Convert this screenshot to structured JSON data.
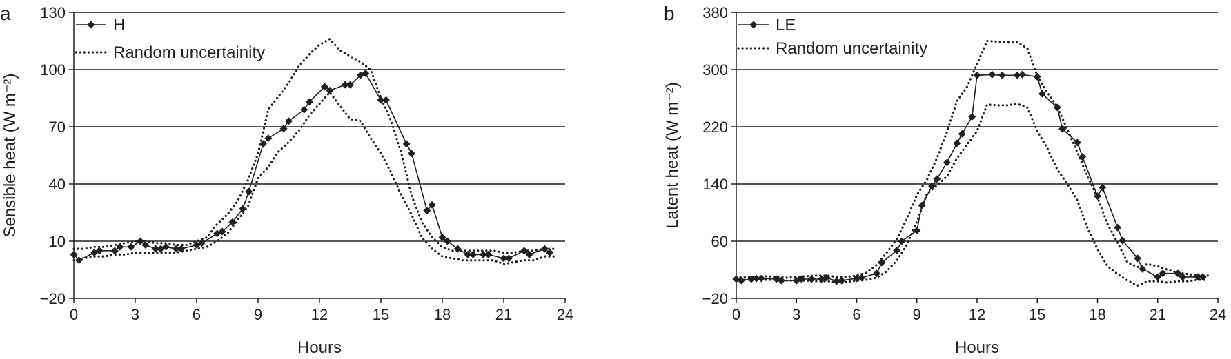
{
  "chart_data": [
    {
      "panel_label": "a",
      "type": "line",
      "xlabel": "Hours",
      "ylabel": "Sensible heat (W m⁻²)",
      "xlim": [
        0,
        24
      ],
      "ylim": [
        -20,
        130
      ],
      "xticks": [
        0,
        3,
        6,
        9,
        12,
        15,
        18,
        21,
        24
      ],
      "yticks": [
        -20,
        10,
        40,
        70,
        100,
        130
      ],
      "ytick_labels": [
        "−20",
        "10",
        "40",
        "70",
        "100",
        "130"
      ],
      "grid": "horizontal",
      "legend_position": "top-left",
      "series": [
        {
          "name": "H",
          "style": "solid-diamond",
          "x": [
            0.0,
            0.25,
            1.0,
            1.25,
            2.0,
            2.25,
            2.8,
            3.25,
            3.5,
            4.0,
            4.25,
            4.5,
            5.0,
            5.25,
            6.0,
            6.25,
            7.0,
            7.25,
            7.75,
            8.25,
            8.55,
            9.25,
            9.5,
            10.25,
            10.5,
            11.25,
            11.5,
            12.25,
            12.5,
            13.25,
            13.5,
            14.0,
            14.25,
            15.0,
            15.25,
            16.25,
            16.5,
            17.25,
            17.5,
            18.0,
            18.25,
            18.75,
            19.25,
            19.5,
            20.0,
            20.25,
            21.0,
            21.25,
            22.0,
            22.25,
            23.0,
            23.25
          ],
          "y": [
            3,
            0,
            4,
            5,
            5,
            7,
            7,
            10,
            8,
            6,
            6,
            7,
            6,
            6,
            8,
            9,
            14,
            15,
            20,
            27,
            36,
            61,
            64,
            69,
            73,
            79,
            83,
            91,
            89,
            92,
            92,
            97,
            98,
            84,
            84,
            61,
            56,
            26,
            29,
            12,
            10,
            6,
            3,
            3,
            3,
            3,
            1,
            1,
            5,
            3,
            6,
            4
          ]
        },
        {
          "name": "Random uncertainity",
          "style": "dotted",
          "role": "upper",
          "x": [
            0,
            0.5,
            1,
            1.5,
            2,
            2.5,
            3,
            3.5,
            4,
            4.5,
            5,
            5.5,
            6,
            6.5,
            7,
            7.5,
            8,
            8.5,
            9,
            9.5,
            10,
            10.5,
            11,
            11.5,
            12,
            12.5,
            13,
            13.5,
            14,
            14.5,
            15,
            15.5,
            16,
            16.5,
            17,
            17.5,
            18,
            18.5,
            19,
            19.5,
            20,
            20.5,
            21,
            21.5,
            22,
            22.5,
            23,
            23.5
          ],
          "y": [
            6,
            6,
            7,
            7,
            8,
            9,
            10,
            10,
            9,
            9,
            8,
            8,
            10,
            12,
            19,
            24,
            31,
            42,
            56,
            79,
            86,
            93,
            102,
            108,
            113,
            116,
            110,
            107,
            104,
            100,
            85,
            73,
            56,
            34,
            20,
            12,
            7,
            5,
            5,
            5,
            5,
            5,
            4,
            4,
            5,
            5,
            6,
            6
          ]
        },
        {
          "name": "Random uncertainity",
          "style": "dotted",
          "role": "lower",
          "x": [
            0,
            0.5,
            1,
            1.5,
            2,
            2.5,
            3,
            3.5,
            4,
            4.5,
            5,
            5.5,
            6,
            6.5,
            7,
            7.5,
            8,
            8.5,
            9,
            9.5,
            10,
            10.5,
            11,
            11.5,
            12,
            12.5,
            13,
            13.5,
            14,
            14.5,
            15,
            15.5,
            16,
            16.5,
            17,
            17.5,
            18,
            18.5,
            19,
            19.5,
            20,
            20.5,
            21,
            21.5,
            22,
            22.5,
            23,
            23.5
          ],
          "y": [
            0,
            1,
            2,
            2,
            3,
            3,
            4,
            4,
            4,
            4,
            4,
            5,
            6,
            7,
            10,
            14,
            21,
            28,
            43,
            49,
            57,
            62,
            68,
            76,
            82,
            88,
            81,
            74,
            73,
            64,
            56,
            46,
            34,
            24,
            12,
            6,
            2,
            1,
            0,
            0,
            0,
            0,
            -2,
            -1,
            0,
            0,
            2,
            2
          ]
        }
      ]
    },
    {
      "panel_label": "b",
      "type": "line",
      "xlabel": "Hours",
      "ylabel": "Latent heat (W m⁻²)",
      "xlim": [
        0,
        24
      ],
      "ylim": [
        -20,
        380
      ],
      "xticks": [
        0,
        3,
        6,
        9,
        12,
        15,
        18,
        21,
        24
      ],
      "yticks": [
        -20,
        60,
        140,
        220,
        300,
        380
      ],
      "ytick_labels": [
        "−20",
        "60",
        "140",
        "220",
        "300",
        "380"
      ],
      "grid": "horizontal",
      "legend_position": "top-left",
      "series": [
        {
          "name": "LE",
          "style": "solid-diamond",
          "x": [
            0.0,
            0.25,
            0.75,
            1.0,
            1.25,
            2.0,
            2.25,
            3.0,
            3.25,
            3.75,
            4.25,
            4.5,
            5.0,
            5.25,
            6.0,
            6.25,
            7.0,
            7.25,
            8.0,
            8.25,
            9.0,
            9.25,
            9.75,
            10.0,
            10.5,
            11.0,
            11.25,
            11.75,
            12.0,
            12.75,
            13.25,
            14.0,
            14.25,
            15.0,
            15.25,
            16.0,
            16.25,
            17.0,
            17.25,
            18.0,
            18.25,
            19.0,
            19.25,
            20.0,
            20.25,
            21.0,
            21.25,
            22.0,
            22.25,
            23.0,
            23.25
          ],
          "y": [
            7,
            5,
            7,
            8,
            8,
            7,
            5,
            5,
            7,
            7,
            7,
            9,
            4,
            5,
            8,
            9,
            15,
            30,
            47,
            60,
            75,
            110,
            137,
            147,
            170,
            197,
            210,
            234,
            292,
            293,
            292,
            292,
            293,
            290,
            266,
            247,
            217,
            198,
            178,
            123,
            135,
            79,
            61,
            36,
            21,
            10,
            15,
            15,
            10,
            10,
            10
          ]
        },
        {
          "name": "Random uncertainity",
          "style": "dotted",
          "role": "upper",
          "x": [
            0,
            0.5,
            1,
            1.5,
            2,
            2.5,
            3,
            3.5,
            4,
            4.5,
            5,
            5.5,
            6,
            6.5,
            7,
            7.5,
            8,
            8.5,
            9,
            9.5,
            10,
            10.5,
            11,
            11.5,
            12,
            12.5,
            13,
            13.5,
            14,
            14.5,
            15,
            15.5,
            16,
            16.5,
            17,
            17.5,
            18,
            18.5,
            19,
            19.5,
            20,
            20.5,
            21,
            21.5,
            22,
            22.5,
            23,
            23.5
          ],
          "y": [
            9,
            10,
            10,
            11,
            10,
            9,
            10,
            11,
            12,
            12,
            10,
            10,
            12,
            16,
            27,
            44,
            63,
            91,
            125,
            146,
            176,
            213,
            256,
            276,
            308,
            340,
            339,
            338,
            338,
            330,
            291,
            268,
            248,
            216,
            184,
            151,
            121,
            84,
            58,
            30,
            24,
            28,
            25,
            20,
            16,
            14,
            12,
            12
          ]
        },
        {
          "name": "Random uncertainity",
          "style": "dotted",
          "role": "lower",
          "x": [
            0,
            0.5,
            1,
            1.5,
            2,
            2.5,
            3,
            3.5,
            4,
            4.5,
            5,
            5.5,
            6,
            6.5,
            7,
            7.5,
            8,
            8.5,
            9,
            9.5,
            10,
            10.5,
            11,
            11.5,
            12,
            12.5,
            13,
            13.5,
            14,
            14.5,
            15,
            15.5,
            16,
            16.5,
            17,
            17.5,
            18,
            18.5,
            19,
            19.5,
            20,
            20.5,
            21,
            21.5,
            22,
            22.5,
            23,
            23.5
          ],
          "y": [
            6,
            6,
            6,
            6,
            6,
            5,
            5,
            5,
            4,
            4,
            3,
            3,
            5,
            6,
            9,
            18,
            33,
            55,
            87,
            126,
            138,
            151,
            176,
            195,
            214,
            251,
            250,
            250,
            252,
            247,
            214,
            190,
            160,
            140,
            117,
            78,
            49,
            25,
            14,
            5,
            -2,
            4,
            4,
            2,
            4,
            4,
            6,
            6
          ]
        }
      ]
    }
  ]
}
